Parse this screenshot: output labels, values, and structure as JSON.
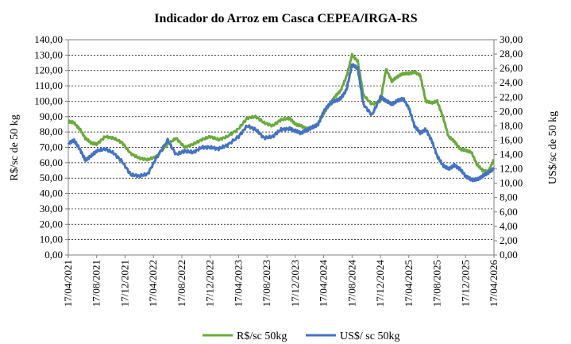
{
  "chart_data": {
    "type": "line",
    "title": "Indicador do Arroz em Casca CEPEA/IRGA-RS",
    "ylabel_left": "R$/sc de 50 kg",
    "ylabel_right": "US$/sc de 50 kg",
    "ylim_left": [
      0,
      140
    ],
    "ylim_right": [
      0,
      30
    ],
    "yticks_left": [
      "0,00",
      "10,00",
      "20,00",
      "30,00",
      "40,00",
      "50,00",
      "60,00",
      "70,00",
      "80,00",
      "90,00",
      "100,00",
      "110,00",
      "120,00",
      "130,00",
      "140,00"
    ],
    "yticks_right": [
      "0,00",
      "2,00",
      "4,00",
      "6,00",
      "8,00",
      "10,00",
      "12,00",
      "14,00",
      "16,00",
      "18,00",
      "20,00",
      "22,00",
      "24,00",
      "26,00",
      "28,00",
      "30,00"
    ],
    "xticks": [
      "17/04/2021",
      "17/08/2021",
      "17/12/2021",
      "17/04/2022",
      "17/08/2022",
      "17/12/2022",
      "17/04/2023",
      "17/08/2023",
      "17/12/2023",
      "17/04/2024",
      "17/08/2024",
      "17/12/2024",
      "17/04/2025",
      "17/08/2025",
      "17/12/2025",
      "17/04/2026"
    ],
    "grid": true,
    "legend_position": "bottom",
    "series": [
      {
        "name": "R$/sc 50kg",
        "axis": "left",
        "color": "#6aaa3a",
        "x": [
          0,
          0.2,
          0.4,
          0.6,
          0.8,
          1.0,
          1.3,
          1.6,
          1.9,
          2.2,
          2.5,
          2.8,
          3.1,
          3.5,
          3.8,
          4.1,
          4.4,
          4.7,
          5.0,
          5.3,
          5.6,
          6.0,
          6.3,
          6.6,
          6.9,
          7.2,
          7.5,
          7.8,
          8.0,
          8.2,
          8.4,
          8.6,
          8.8,
          9.0,
          9.2,
          9.4,
          9.6,
          9.8,
          10.0,
          10.2,
          10.4,
          10.7,
          11.0,
          11.2,
          11.4,
          11.6,
          11.8,
          12.0,
          12.2,
          12.4,
          12.6,
          12.8,
          13.0,
          13.2,
          13.4,
          13.6,
          13.8,
          14.0,
          14.2,
          14.4,
          14.6,
          14.8,
          15.0
        ],
        "values": [
          87,
          86,
          82,
          76,
          73,
          72,
          77,
          76,
          73,
          66,
          63,
          62,
          64,
          72,
          76,
          70,
          72,
          75,
          77,
          75,
          77,
          82,
          89,
          90,
          86,
          84,
          88,
          89,
          85,
          84,
          82,
          83,
          85,
          92,
          98,
          103,
          107,
          116,
          130,
          126,
          104,
          98,
          100,
          121,
          113,
          116,
          118,
          118,
          119,
          117,
          100,
          99,
          100,
          90,
          77,
          74,
          69,
          68,
          67,
          59,
          55,
          54,
          62
        ]
      },
      {
        "name": "US$/ sc 50kg",
        "axis": "right",
        "color": "#4472c4",
        "x": [
          0,
          0.2,
          0.4,
          0.6,
          0.8,
          1.0,
          1.3,
          1.6,
          1.9,
          2.2,
          2.5,
          2.8,
          3.1,
          3.5,
          3.8,
          4.1,
          4.4,
          4.7,
          5.0,
          5.3,
          5.6,
          6.0,
          6.3,
          6.6,
          6.9,
          7.2,
          7.5,
          7.8,
          8.0,
          8.2,
          8.4,
          8.6,
          8.8,
          9.0,
          9.2,
          9.4,
          9.6,
          9.8,
          10.0,
          10.2,
          10.4,
          10.7,
          11.0,
          11.2,
          11.4,
          11.6,
          11.8,
          12.0,
          12.2,
          12.4,
          12.6,
          12.8,
          13.0,
          13.2,
          13.4,
          13.6,
          13.8,
          14.0,
          14.2,
          14.4,
          14.6,
          14.8,
          15.0
        ],
        "values": [
          15.5,
          16.0,
          14.8,
          13.2,
          13.8,
          14.5,
          14.8,
          14.2,
          13.0,
          11.2,
          11.0,
          11.3,
          13.5,
          16.0,
          14.0,
          14.5,
          14.3,
          15.0,
          15.0,
          14.8,
          15.3,
          16.5,
          18.0,
          17.5,
          16.3,
          16.5,
          17.5,
          17.6,
          17.3,
          17.0,
          17.4,
          17.8,
          18.2,
          20.0,
          21.0,
          21.5,
          21.8,
          23.0,
          26.5,
          26.0,
          21.0,
          19.5,
          22.0,
          21.5,
          21.0,
          21.5,
          21.8,
          20.5,
          18.0,
          17.0,
          17.5,
          16.0,
          13.8,
          12.5,
          12.0,
          12.5,
          12.0,
          11.0,
          10.5,
          10.5,
          11.0,
          11.5,
          12.0
        ]
      }
    ]
  }
}
